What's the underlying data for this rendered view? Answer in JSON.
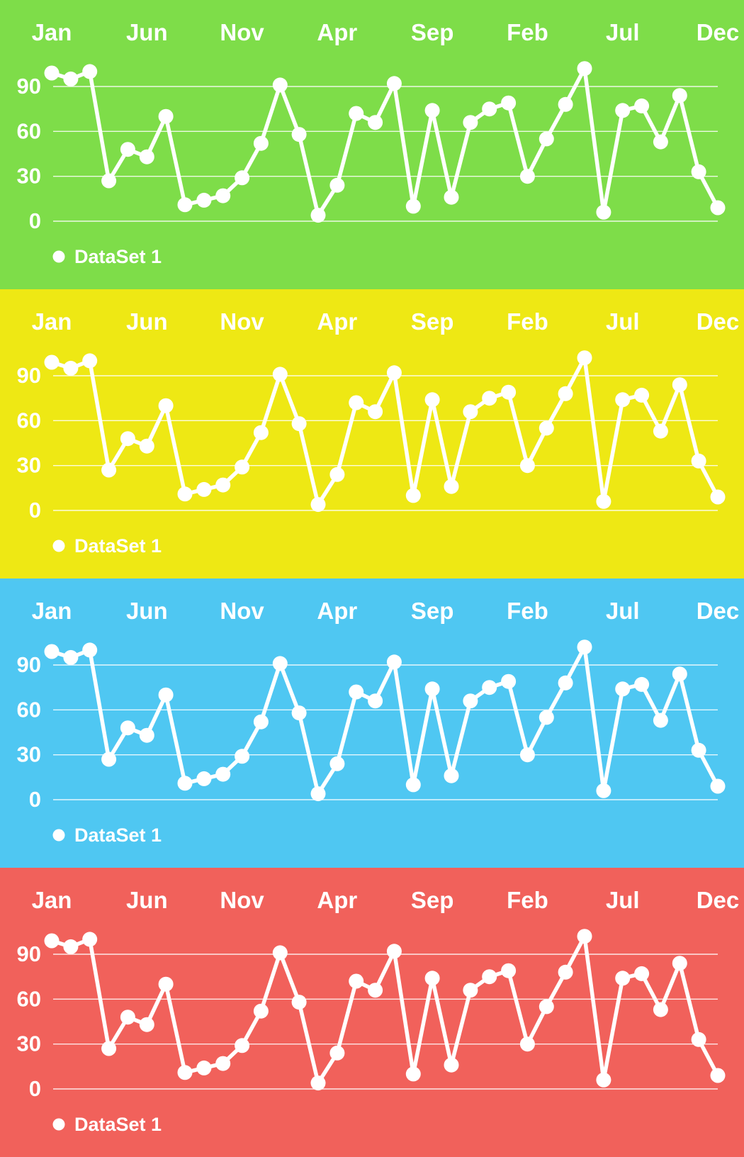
{
  "page": {
    "description": "Four stacked line charts showing identical data on different background colors",
    "text_color": "#ffffff"
  },
  "chart_data": [
    {
      "type": "line",
      "panel": "green",
      "background": "#7EDD49",
      "line_color": "#ffffff",
      "grid": true,
      "legend": {
        "label": "DataSet 1",
        "position": "bottom-left",
        "marker": "circle-icon"
      },
      "x_axis": {
        "tick_labels": [
          "Jan",
          "Jun",
          "Nov",
          "Apr",
          "Sep",
          "Feb",
          "Jul",
          "Dec"
        ],
        "tick_indices": [
          0,
          5,
          10,
          15,
          20,
          25,
          30,
          35
        ],
        "position": "top"
      },
      "y_axis": {
        "ticks": [
          0,
          30,
          60,
          90
        ],
        "ylim": [
          0,
          105
        ]
      },
      "series": [
        {
          "name": "DataSet 1",
          "values": [
            99,
            95,
            100,
            27,
            48,
            43,
            70,
            11,
            14,
            17,
            29,
            52,
            91,
            58,
            4,
            24,
            72,
            66,
            92,
            10,
            74,
            16,
            66,
            75,
            79,
            30,
            55,
            78,
            102,
            6,
            74,
            77,
            53,
            84,
            33,
            9
          ]
        }
      ]
    },
    {
      "type": "line",
      "panel": "yellow",
      "background": "#EEE814",
      "line_color": "#ffffff",
      "grid": true,
      "legend": {
        "label": "DataSet 1",
        "position": "bottom-left",
        "marker": "circle-icon"
      },
      "x_axis": {
        "tick_labels": [
          "Jan",
          "Jun",
          "Nov",
          "Apr",
          "Sep",
          "Feb",
          "Jul",
          "Dec"
        ],
        "tick_indices": [
          0,
          5,
          10,
          15,
          20,
          25,
          30,
          35
        ],
        "position": "top"
      },
      "y_axis": {
        "ticks": [
          0,
          30,
          60,
          90
        ],
        "ylim": [
          0,
          105
        ]
      },
      "series": [
        {
          "name": "DataSet 1",
          "values": [
            99,
            95,
            100,
            27,
            48,
            43,
            70,
            11,
            14,
            17,
            29,
            52,
            91,
            58,
            4,
            24,
            72,
            66,
            92,
            10,
            74,
            16,
            66,
            75,
            79,
            30,
            55,
            78,
            102,
            6,
            74,
            77,
            53,
            84,
            33,
            9
          ]
        }
      ]
    },
    {
      "type": "line",
      "panel": "blue",
      "background": "#4FC7F2",
      "line_color": "#ffffff",
      "grid": true,
      "legend": {
        "label": "DataSet 1",
        "position": "bottom-left",
        "marker": "circle-icon"
      },
      "x_axis": {
        "tick_labels": [
          "Jan",
          "Jun",
          "Nov",
          "Apr",
          "Sep",
          "Feb",
          "Jul",
          "Dec"
        ],
        "tick_indices": [
          0,
          5,
          10,
          15,
          20,
          25,
          30,
          35
        ],
        "position": "top"
      },
      "y_axis": {
        "ticks": [
          0,
          30,
          60,
          90
        ],
        "ylim": [
          0,
          105
        ]
      },
      "series": [
        {
          "name": "DataSet 1",
          "values": [
            99,
            95,
            100,
            27,
            48,
            43,
            70,
            11,
            14,
            17,
            29,
            52,
            91,
            58,
            4,
            24,
            72,
            66,
            92,
            10,
            74,
            16,
            66,
            75,
            79,
            30,
            55,
            78,
            102,
            6,
            74,
            77,
            53,
            84,
            33,
            9
          ]
        }
      ]
    },
    {
      "type": "line",
      "panel": "red",
      "background": "#F1615B",
      "line_color": "#ffffff",
      "grid": true,
      "legend": {
        "label": "DataSet 1",
        "position": "bottom-left",
        "marker": "circle-icon"
      },
      "x_axis": {
        "tick_labels": [
          "Jan",
          "Jun",
          "Nov",
          "Apr",
          "Sep",
          "Feb",
          "Jul",
          "Dec"
        ],
        "tick_indices": [
          0,
          5,
          10,
          15,
          20,
          25,
          30,
          35
        ],
        "position": "top"
      },
      "y_axis": {
        "ticks": [
          0,
          30,
          60,
          90
        ],
        "ylim": [
          0,
          105
        ]
      },
      "series": [
        {
          "name": "DataSet 1",
          "values": [
            99,
            95,
            100,
            27,
            48,
            43,
            70,
            11,
            14,
            17,
            29,
            52,
            91,
            58,
            4,
            24,
            72,
            66,
            92,
            10,
            74,
            16,
            66,
            75,
            79,
            30,
            55,
            78,
            102,
            6,
            74,
            77,
            53,
            84,
            33,
            9
          ]
        }
      ]
    }
  ]
}
